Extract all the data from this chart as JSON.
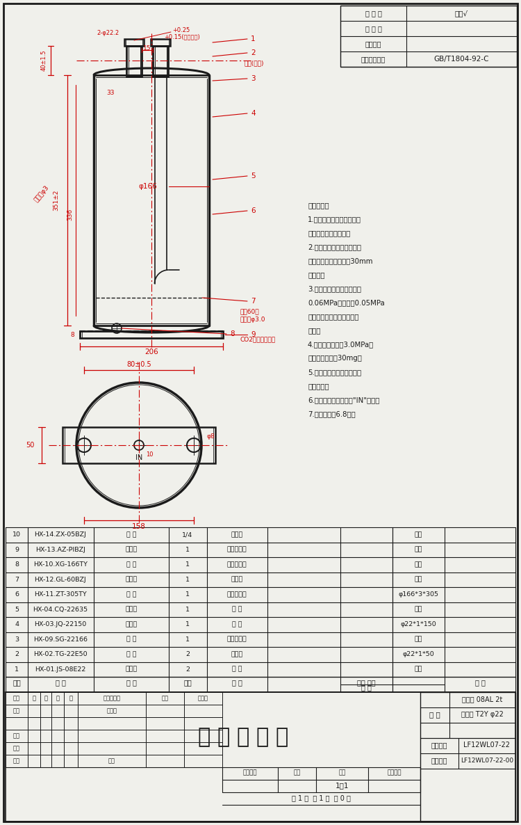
{
  "bg_color": "#f0f0eb",
  "line_color": "#1a1a1a",
  "red_color": "#cc0000",
  "white_color": "#ffffff",
  "title_text": "气 液 分 离 器",
  "top_right_rows": [
    [
      "光 洁 度",
      "其余√"
    ],
    [
      "热 处 理",
      ""
    ],
    [
      "表面处理",
      ""
    ],
    [
      "未注尺尖公差",
      "GB/T1804-92-C"
    ]
  ],
  "tech_req": [
    "技术要求：",
    "1.焊缝平整、光滑，筒体不",
    "得有锐边、碌碘变形，",
    "2.表面磷化后喷涂黑色有光",
    "环氧聚酯粉末，管口下30mm",
    "不喷涂，",
    "3.内部清洁干燥，成品内抚",
    "0.06MPa真空后充0.05MPa",
    "表压干燥氮气，并用防尘塞",
    "封口，",
    "4.气密实验压力为3.0MPa，",
    "杂质含量不超过30mg，",
    "5.产品外表面筒体上贴产品",
    "型号标签，",
    "6.进气管外筒体表面打\"IN\"字样，",
    "7.有效容积为6.8升。"
  ],
  "bom_rows": [
    [
      "10",
      "HX-14.ZX-05BZJ",
      "纸 筱",
      "1/4",
      "瓦楞纸",
      "",
      "",
      "借用"
    ],
    [
      "9",
      "HX-13.AZ-PIBZJ",
      "安装板",
      "1",
      "冷轧薄钉板",
      "",
      "",
      "借用"
    ],
    [
      "8",
      "HX-10.XG-166TY",
      "下 盖",
      "1",
      "冷轧薄钉板",
      "",
      "",
      "借用"
    ],
    [
      "7",
      "HX-12.GL-60BZJ",
      "过滤器",
      "1",
      "过滤器",
      "",
      "",
      "借用"
    ],
    [
      "6",
      "HX-11.ZT-305TY",
      "中 筒",
      "1",
      "冷轧薄钉板",
      "",
      "",
      "φ166*3*305"
    ],
    [
      "5",
      "HX-04.CQ-22635",
      "出气管",
      "1",
      "钉 管",
      "",
      "",
      "借用"
    ],
    [
      "4",
      "HX-03.JQ-22150",
      "进气管",
      "1",
      "鑉 管",
      "",
      "",
      "φ22*1*150"
    ],
    [
      "3",
      "HX-09.SG-22166",
      "上 盖",
      "1",
      "冷轧薄钉板",
      "",
      "",
      "借用"
    ],
    [
      "2",
      "HX-02.TG-22E50",
      "铜 管",
      "2",
      "紫铜管",
      "",
      "",
      "φ22*1*50"
    ],
    [
      "1",
      "HX-01.JS-08E22",
      "防尘塞",
      "2",
      "橡 胶",
      "",
      "",
      "借用"
    ]
  ]
}
